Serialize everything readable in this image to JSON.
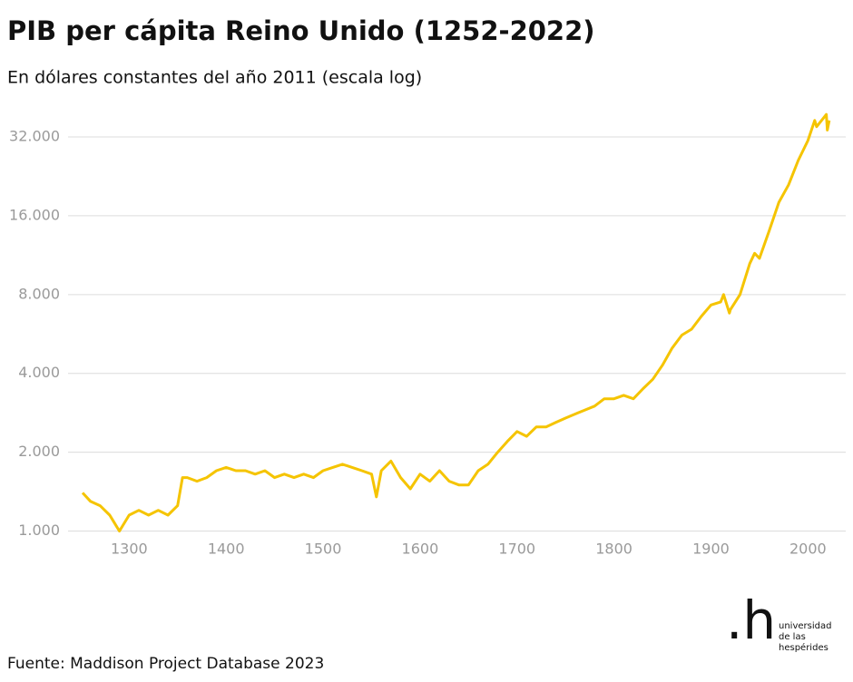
{
  "chart_data": {
    "type": "line",
    "title": "PIB per cápita Reino Unido (1252-2022)",
    "subtitle": "En dólares constantes del año 2011 (escala log)",
    "source": "Fuente: Maddison Project Database 2023",
    "logo": {
      "mark": ".h",
      "lines": [
        "universidad",
        "de las",
        "hespérides"
      ]
    },
    "x": [
      1252,
      1260,
      1270,
      1280,
      1290,
      1300,
      1310,
      1320,
      1330,
      1340,
      1350,
      1355,
      1360,
      1370,
      1380,
      1390,
      1400,
      1410,
      1420,
      1430,
      1440,
      1450,
      1460,
      1470,
      1480,
      1490,
      1500,
      1510,
      1520,
      1530,
      1540,
      1550,
      1555,
      1560,
      1570,
      1580,
      1590,
      1600,
      1610,
      1620,
      1630,
      1640,
      1650,
      1660,
      1670,
      1680,
      1690,
      1700,
      1710,
      1720,
      1730,
      1740,
      1750,
      1760,
      1770,
      1780,
      1790,
      1800,
      1810,
      1820,
      1830,
      1840,
      1850,
      1860,
      1870,
      1880,
      1890,
      1900,
      1910,
      1913,
      1919,
      1920,
      1930,
      1940,
      1945,
      1950,
      1960,
      1970,
      1980,
      1990,
      2000,
      2007,
      2009,
      2019,
      2020,
      2022
    ],
    "series": [
      {
        "name": "PIB per cápita",
        "color": "#f5c400",
        "values": [
          1400,
          1300,
          1250,
          1150,
          1000,
          1150,
          1200,
          1150,
          1200,
          1150,
          1250,
          1600,
          1600,
          1550,
          1600,
          1700,
          1750,
          1700,
          1700,
          1650,
          1700,
          1600,
          1650,
          1600,
          1650,
          1600,
          1700,
          1750,
          1800,
          1750,
          1700,
          1650,
          1350,
          1700,
          1850,
          1600,
          1450,
          1650,
          1550,
          1700,
          1550,
          1500,
          1500,
          1700,
          1800,
          2000,
          2200,
          2400,
          2300,
          2500,
          2500,
          2600,
          2700,
          2800,
          2900,
          3000,
          3200,
          3200,
          3300,
          3200,
          3500,
          3800,
          4300,
          5000,
          5600,
          5900,
          6600,
          7300,
          7500,
          8000,
          6800,
          7000,
          8000,
          10500,
          11500,
          11000,
          14000,
          18000,
          21000,
          26000,
          31000,
          37000,
          35000,
          39000,
          34000,
          37000
        ]
      }
    ],
    "xlim": [
      1237,
      2039
    ],
    "xticks": [
      1300,
      1400,
      1500,
      1600,
      1700,
      1800,
      1900,
      2000
    ],
    "ylim": [
      950,
      40000
    ],
    "yscale": "log",
    "grid": true,
    "yticks": [
      {
        "value": 1000,
        "label": "1.000"
      },
      {
        "value": 2000,
        "label": "2.000"
      },
      {
        "value": 4000,
        "label": "4.000"
      },
      {
        "value": 8000,
        "label": "8.000"
      },
      {
        "value": 16000,
        "label": "16.000"
      },
      {
        "value": 32000,
        "label": "32.000"
      }
    ]
  }
}
